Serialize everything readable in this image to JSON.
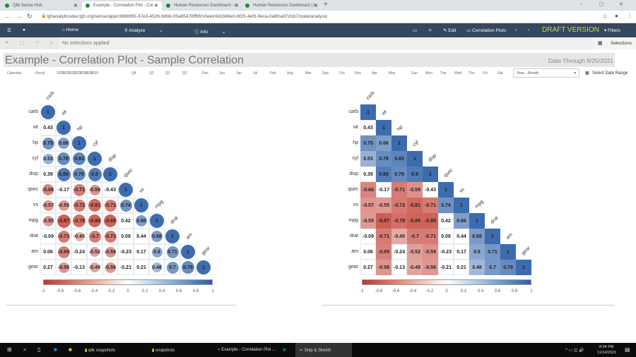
{
  "browser": {
    "tabs": [
      {
        "label": "Qlik Sense Hub"
      },
      {
        "label": "Example - Correlation Plot - Cor"
      },
      {
        "label": "Human Resources Dashboard - I"
      },
      {
        "label": "Human Resources Dashboard | I"
      }
    ],
    "url": "tghanalyticsdev.tgh.org/sense/app/c988bf65-37e3-4526-9d9d-05a65478ff65/sheet/42d346e0-bf25-4ef3-9eca-0a6fca97d1b7/state/analysis"
  },
  "nav": {
    "home": "Home",
    "analyze": "Analyze",
    "info": "Info",
    "edit": "Edit",
    "sheet": "Correlation Plots",
    "draft": "DRAFT VERSION",
    "filters": "Filters"
  },
  "selections": {
    "status": "No selections applied",
    "label": "Selections"
  },
  "sheet": {
    "title": "Example - Correlation Plot - Sample Correlation",
    "data_through": "Data Through 8/25/2031"
  },
  "filters": {
    "items": [
      "Calendar",
      "Fiscal",
      "2020",
      "2021",
      "2022",
      "2023",
      "2024",
      "2025",
      "2026",
      "Q4",
      "Q2",
      "Q1",
      "Q3",
      "Dec",
      "Jun",
      "Jan",
      "Jul",
      "Feb",
      "Aug",
      "Mar",
      "Sep",
      "Oct",
      "Nov",
      "Apr",
      "May",
      "Sun",
      "Mon",
      "Tue",
      "Wed",
      "Thu",
      "Fri",
      "Sat"
    ],
    "dropdown": "Year - Month",
    "date_range": "Select Date Range"
  },
  "chart_data": [
    {
      "type": "heatmap",
      "style": "circle",
      "variables": [
        "carb",
        "wt",
        "hp",
        "cyl",
        "disp",
        "qsec",
        "vs",
        "mpg",
        "drat",
        "am",
        "gear"
      ],
      "matrix": [
        [
          1
        ],
        [
          0.43,
          1
        ],
        [
          0.75,
          0.66,
          1
        ],
        [
          0.53,
          0.78,
          0.83,
          1
        ],
        [
          0.39,
          0.89,
          0.79,
          0.9,
          1
        ],
        [
          -0.66,
          -0.17,
          -0.71,
          -0.59,
          -0.43,
          1
        ],
        [
          -0.57,
          -0.55,
          -0.72,
          -0.81,
          -0.71,
          0.74,
          1
        ],
        [
          -0.55,
          -0.87,
          -0.78,
          -0.85,
          -0.85,
          0.42,
          0.66,
          1
        ],
        [
          -0.09,
          -0.71,
          -0.45,
          -0.7,
          -0.71,
          0.09,
          0.44,
          0.68,
          1
        ],
        [
          0.06,
          -0.69,
          -0.24,
          -0.52,
          -0.59,
          -0.23,
          0.17,
          0.6,
          0.71,
          1
        ],
        [
          0.27,
          -0.58,
          -0.13,
          -0.49,
          -0.56,
          -0.21,
          0.21,
          0.48,
          0.7,
          0.79,
          1
        ]
      ],
      "colorbar_ticks": [
        "-1",
        "-0.8",
        "-0.6",
        "-0.4",
        "-0.2",
        "0",
        "0.2",
        "0.4",
        "0.6",
        "0.8",
        "1"
      ],
      "range": [
        -1,
        1
      ]
    },
    {
      "type": "heatmap",
      "style": "square",
      "variables": [
        "carb",
        "wt",
        "hp",
        "cyl",
        "disp",
        "qsec",
        "vs",
        "mpg",
        "drat",
        "am",
        "gear"
      ],
      "matrix": [
        [
          1
        ],
        [
          0.43,
          1
        ],
        [
          0.75,
          0.66,
          1
        ],
        [
          0.53,
          0.78,
          0.83,
          1
        ],
        [
          0.39,
          0.89,
          0.79,
          0.9,
          1
        ],
        [
          -0.66,
          -0.17,
          -0.71,
          -0.59,
          -0.43,
          1
        ],
        [
          -0.57,
          -0.55,
          -0.72,
          -0.81,
          -0.71,
          0.74,
          1
        ],
        [
          -0.55,
          -0.87,
          -0.78,
          -0.85,
          -0.85,
          0.42,
          0.66,
          1
        ],
        [
          -0.09,
          -0.71,
          -0.45,
          -0.7,
          -0.71,
          0.09,
          0.44,
          0.68,
          1
        ],
        [
          0.06,
          -0.69,
          -0.24,
          -0.52,
          -0.59,
          -0.23,
          0.17,
          0.6,
          0.71,
          1
        ],
        [
          0.27,
          -0.58,
          -0.13,
          -0.49,
          -0.56,
          -0.21,
          0.21,
          0.48,
          0.7,
          0.79,
          1
        ]
      ],
      "colorbar_ticks": [
        "-1",
        "-0.8",
        "-0.6",
        "-0.4",
        "-0.2",
        "0",
        "0.2",
        "0.4",
        "0.6",
        "0.8",
        "1"
      ],
      "range": [
        -1,
        1
      ]
    }
  ],
  "taskbar": {
    "items": [
      "qlik snapshots",
      "snapshots",
      "Example - Correlation Plot ...",
      "Snip & Sketch"
    ],
    "time": "8:04 PM",
    "date": "11/14/2021"
  }
}
